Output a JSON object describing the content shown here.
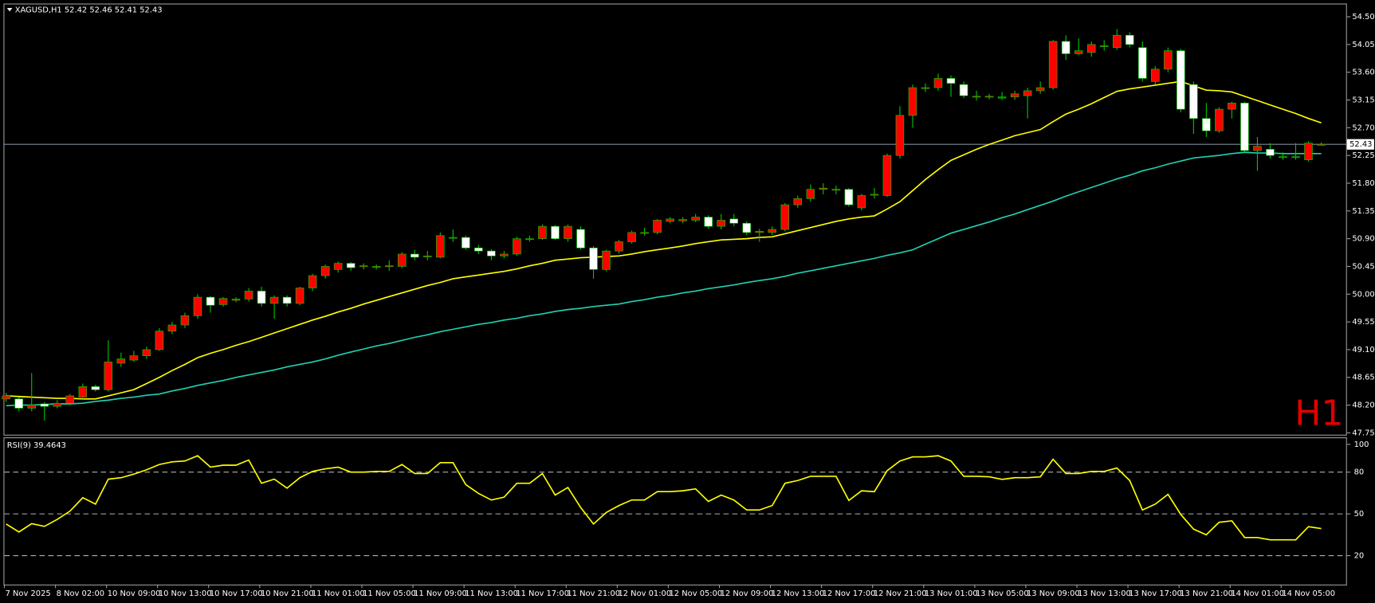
{
  "chart_data": [
    {
      "type": "candlestick",
      "title": "XAGUSD,H1  52.42 52.46 52.41 52.43",
      "watermark": "H1",
      "up_color": "#ff0000",
      "down_color": "#ffffff",
      "line_color": "#00c800",
      "bid": 52.43,
      "bid_color": "#7a8a99",
      "ylim": [
        47.72,
        54.7
      ],
      "yticks": [
        {
          "value": 54.5,
          "label": "54.50"
        },
        {
          "value": 54.05,
          "label": "54.05"
        },
        {
          "value": 53.6,
          "label": "53.60"
        },
        {
          "value": 53.15,
          "label": "53.15"
        },
        {
          "value": 52.7,
          "label": "52.70"
        },
        {
          "value": 52.25,
          "label": "52.25"
        },
        {
          "value": 51.8,
          "label": "51.80"
        },
        {
          "value": 51.35,
          "label": "51.35"
        },
        {
          "value": 50.9,
          "label": "50.90"
        },
        {
          "value": 50.45,
          "label": "50.45"
        },
        {
          "value": 50.0,
          "label": "50.00"
        },
        {
          "value": 49.55,
          "label": "49.55"
        },
        {
          "value": 49.1,
          "label": "49.10"
        },
        {
          "value": 48.65,
          "label": "48.65"
        },
        {
          "value": 48.2,
          "label": "48.20"
        },
        {
          "value": 47.75,
          "label": "47.75"
        }
      ],
      "categories": [
        "7 Nov 2025",
        null,
        null,
        null,
        "8 Nov 02:00",
        null,
        null,
        null,
        "10 Nov 09:00",
        null,
        null,
        null,
        "10 Nov 13:00",
        null,
        null,
        null,
        "10 Nov 17:00",
        null,
        null,
        null,
        "10 Nov 21:00",
        null,
        null,
        null,
        "11 Nov 01:00",
        null,
        null,
        null,
        "11 Nov 05:00",
        null,
        null,
        null,
        "11 Nov 09:00",
        null,
        null,
        null,
        "11 Nov 13:00",
        null,
        null,
        null,
        "11 Nov 17:00",
        null,
        null,
        null,
        "11 Nov 21:00",
        null,
        null,
        null,
        "12 Nov 01:00",
        null,
        null,
        null,
        "12 Nov 05:00",
        null,
        null,
        null,
        "12 Nov 09:00",
        null,
        null,
        null,
        "12 Nov 13:00",
        null,
        null,
        null,
        "12 Nov 17:00",
        null,
        null,
        null,
        "12 Nov 21:00",
        null,
        null,
        null,
        "13 Nov 01:00",
        null,
        null,
        null,
        "13 Nov 05:00",
        null,
        null,
        null,
        "13 Nov 09:00",
        null,
        null,
        null,
        "13 Nov 13:00",
        null,
        null,
        null,
        "13 Nov 17:00",
        null,
        null,
        null,
        "13 Nov 21:00",
        null,
        null,
        null,
        "14 Nov 01:00",
        null,
        null,
        null,
        "14 Nov 05:00",
        null,
        null,
        null
      ],
      "open": [
        48.3,
        48.3,
        48.15,
        48.22,
        48.18,
        48.23,
        48.33,
        48.5,
        48.45,
        48.88,
        48.93,
        49.0,
        49.1,
        49.4,
        49.5,
        49.65,
        49.95,
        49.83,
        49.9,
        49.92,
        50.05,
        49.85,
        49.95,
        49.85,
        50.1,
        50.3,
        50.4,
        50.5,
        50.45,
        50.44,
        50.45,
        50.45,
        50.65,
        50.61,
        50.6,
        50.91,
        50.92,
        50.75,
        50.7,
        50.62,
        50.65,
        50.89,
        50.9,
        51.1,
        50.9,
        51.05,
        50.75,
        50.4,
        50.7,
        50.85,
        50.99,
        51.0,
        51.18,
        51.19,
        51.2,
        51.25,
        51.1,
        51.22,
        51.15,
        51.0,
        51.0,
        51.05,
        51.45,
        51.55,
        51.7,
        51.69,
        51.7,
        51.4,
        51.61,
        51.6,
        52.25,
        52.9,
        53.34,
        53.35,
        53.5,
        53.4,
        53.2,
        53.2,
        53.18,
        53.2,
        53.22,
        53.3,
        53.35,
        54.1,
        53.9,
        53.92,
        54.02,
        54.0,
        54.2,
        54.0,
        53.45,
        53.65,
        53.95,
        53.4,
        52.85,
        52.65,
        53.0,
        53.1,
        52.33,
        52.35,
        52.22,
        52.22,
        52.18,
        52.42
      ],
      "high": [
        48.4,
        48.33,
        48.72,
        48.25,
        48.28,
        48.38,
        48.55,
        48.53,
        49.25,
        49.05,
        49.08,
        49.15,
        49.45,
        49.55,
        49.7,
        50.0,
        49.97,
        49.95,
        49.95,
        50.1,
        50.12,
        49.98,
        49.98,
        50.12,
        50.33,
        50.48,
        50.53,
        50.52,
        50.5,
        50.48,
        50.55,
        50.68,
        50.72,
        50.7,
        51.0,
        51.05,
        50.95,
        50.8,
        50.73,
        50.7,
        50.93,
        50.95,
        51.13,
        51.12,
        51.13,
        51.1,
        50.78,
        50.72,
        50.88,
        51.03,
        51.08,
        51.22,
        51.25,
        51.25,
        51.3,
        51.28,
        51.3,
        51.3,
        51.18,
        51.06,
        51.1,
        51.48,
        51.6,
        51.78,
        51.8,
        51.76,
        51.72,
        51.63,
        51.72,
        52.28,
        53.05,
        53.4,
        53.42,
        53.58,
        53.55,
        53.45,
        53.3,
        53.25,
        53.28,
        53.3,
        53.35,
        53.45,
        54.12,
        54.2,
        54.15,
        54.1,
        54.12,
        54.3,
        54.25,
        54.1,
        53.7,
        54.0,
        53.98,
        53.45,
        53.1,
        53.03,
        53.12,
        53.12,
        52.55,
        52.45,
        52.3,
        52.45,
        52.48,
        52.46
      ],
      "low": [
        48.25,
        48.1,
        48.1,
        47.95,
        48.15,
        48.2,
        48.3,
        48.42,
        48.42,
        48.82,
        48.9,
        48.95,
        49.08,
        49.35,
        49.45,
        49.6,
        49.7,
        49.8,
        49.87,
        49.88,
        49.8,
        49.6,
        49.8,
        49.82,
        50.05,
        50.25,
        50.35,
        50.38,
        50.4,
        50.4,
        50.38,
        50.42,
        50.55,
        50.55,
        50.58,
        50.85,
        50.72,
        50.65,
        50.55,
        50.58,
        50.62,
        50.85,
        50.88,
        50.88,
        50.85,
        50.72,
        50.25,
        50.37,
        50.66,
        50.82,
        50.95,
        50.97,
        51.15,
        51.15,
        51.17,
        51.06,
        51.05,
        51.1,
        50.96,
        50.85,
        50.96,
        51.02,
        51.4,
        51.5,
        51.62,
        51.62,
        51.42,
        51.36,
        51.55,
        51.58,
        52.2,
        52.7,
        53.28,
        53.3,
        53.2,
        53.18,
        53.14,
        53.16,
        53.15,
        53.15,
        52.85,
        53.25,
        53.32,
        53.8,
        53.88,
        53.85,
        53.95,
        53.96,
        54.0,
        53.45,
        53.4,
        53.6,
        52.95,
        52.6,
        52.55,
        52.62,
        52.85,
        52.3,
        52.0,
        52.2,
        52.18,
        52.18,
        52.15,
        52.41
      ],
      "close": [
        48.35,
        48.15,
        48.2,
        48.18,
        48.23,
        48.35,
        48.5,
        48.45,
        48.9,
        48.95,
        49.0,
        49.1,
        49.4,
        49.5,
        49.65,
        49.95,
        49.82,
        49.93,
        49.92,
        50.05,
        49.85,
        49.95,
        49.85,
        50.1,
        50.3,
        50.45,
        50.5,
        50.43,
        50.46,
        50.45,
        50.46,
        50.65,
        50.6,
        50.62,
        50.95,
        50.92,
        50.75,
        50.7,
        50.62,
        50.65,
        50.9,
        50.9,
        51.1,
        50.9,
        51.1,
        50.75,
        50.4,
        50.7,
        50.85,
        51.0,
        51.0,
        51.2,
        51.22,
        51.21,
        51.25,
        51.1,
        51.2,
        51.15,
        51.0,
        51.02,
        51.05,
        51.45,
        51.55,
        51.7,
        51.72,
        51.7,
        51.45,
        51.6,
        51.62,
        52.25,
        52.9,
        53.35,
        53.35,
        53.5,
        53.42,
        53.22,
        53.21,
        53.21,
        53.2,
        53.25,
        53.3,
        53.35,
        54.1,
        53.9,
        53.95,
        54.05,
        54.03,
        54.2,
        54.05,
        53.5,
        53.65,
        53.95,
        53.0,
        52.85,
        52.65,
        53.0,
        53.1,
        52.33,
        52.4,
        52.25,
        52.23,
        52.23,
        52.45,
        52.43
      ],
      "overlays": [
        {
          "color": "#ffff00",
          "values": [
            48.35,
            48.34,
            48.33,
            48.32,
            48.31,
            48.31,
            48.3,
            48.3,
            48.35,
            48.4,
            48.45,
            48.55,
            48.65,
            48.76,
            48.86,
            48.97,
            49.04,
            49.1,
            49.17,
            49.23,
            49.3,
            49.37,
            49.44,
            49.51,
            49.58,
            49.64,
            49.71,
            49.77,
            49.84,
            49.9,
            49.96,
            50.02,
            50.08,
            50.14,
            50.19,
            50.25,
            50.28,
            50.31,
            50.34,
            50.37,
            50.41,
            50.46,
            50.5,
            50.55,
            50.57,
            50.59,
            50.6,
            50.61,
            50.62,
            50.65,
            50.69,
            50.72,
            50.75,
            50.78,
            50.82,
            50.85,
            50.88,
            50.89,
            50.9,
            50.92,
            50.93,
            50.98,
            51.03,
            51.08,
            51.13,
            51.18,
            51.22,
            51.25,
            51.27,
            51.38,
            51.5,
            51.68,
            51.86,
            52.02,
            52.17,
            52.26,
            52.35,
            52.43,
            52.5,
            52.57,
            52.62,
            52.67,
            52.8,
            52.92,
            53.0,
            53.09,
            53.19,
            53.29,
            53.33,
            53.36,
            53.39,
            53.42,
            53.45,
            53.38,
            53.31,
            53.3,
            53.28,
            53.21,
            53.14,
            53.07,
            53.0,
            52.93,
            52.85,
            52.78
          ]
        },
        {
          "color": "#20d0b0",
          "values": [
            48.19,
            48.2,
            48.2,
            48.21,
            48.22,
            48.22,
            48.23,
            48.26,
            48.28,
            48.31,
            48.33,
            48.36,
            48.38,
            48.43,
            48.47,
            48.52,
            48.56,
            48.6,
            48.65,
            48.69,
            48.73,
            48.77,
            48.82,
            48.86,
            48.9,
            48.95,
            49.01,
            49.06,
            49.11,
            49.16,
            49.2,
            49.25,
            49.3,
            49.34,
            49.39,
            49.43,
            49.47,
            49.51,
            49.54,
            49.58,
            49.61,
            49.65,
            49.68,
            49.72,
            49.75,
            49.77,
            49.8,
            49.82,
            49.84,
            49.88,
            49.91,
            49.95,
            49.98,
            50.02,
            50.05,
            50.09,
            50.12,
            50.15,
            50.19,
            50.22,
            50.25,
            50.29,
            50.34,
            50.38,
            50.42,
            50.46,
            50.5,
            50.54,
            50.58,
            50.63,
            50.67,
            50.72,
            50.81,
            50.9,
            50.99,
            51.05,
            51.11,
            51.17,
            51.24,
            51.3,
            51.37,
            51.44,
            51.51,
            51.59,
            51.66,
            51.73,
            51.8,
            51.87,
            51.93,
            52.0,
            52.05,
            52.11,
            52.16,
            52.21,
            52.23,
            52.25,
            52.28,
            52.3,
            52.29,
            52.29,
            52.28,
            52.28,
            52.28,
            52.28
          ]
        }
      ]
    },
    {
      "type": "line",
      "title": "RSI(9) 39.4643",
      "color": "#ffff00",
      "level_color": "#b0b0b0",
      "ylim": [
        -0.8,
        104.4
      ],
      "yticks": [
        100,
        80,
        50,
        20
      ],
      "levels": [
        80,
        50,
        20
      ],
      "values": [
        42.7,
        37,
        43,
        41,
        46,
        52,
        61.6,
        57,
        75,
        76,
        78.6,
        81.7,
        85.5,
        87.4,
        88,
        91.8,
        83.6,
        85,
        85,
        88.7,
        72,
        75,
        68.5,
        76,
        80.5,
        82.4,
        83.6,
        80,
        80,
        80.5,
        80.5,
        85.5,
        79,
        79,
        86.8,
        86.8,
        71,
        64.7,
        60,
        62,
        72,
        72,
        79,
        63.5,
        69,
        54.6,
        42.7,
        51,
        56,
        60,
        60,
        66,
        66,
        66.6,
        68,
        59,
        63.5,
        60,
        52.8,
        52.8,
        56,
        72,
        74,
        77,
        77,
        77,
        59.7,
        66.6,
        66,
        81,
        88,
        91,
        91,
        91.8,
        88,
        77,
        77,
        76.7,
        74.8,
        76,
        76,
        76.7,
        89.3,
        79,
        79,
        80.5,
        80.5,
        83,
        74,
        52.8,
        57,
        64,
        49.6,
        39,
        35,
        44,
        45,
        33,
        33,
        31.3,
        31.3,
        31.3,
        40.8,
        39.46
      ]
    }
  ]
}
